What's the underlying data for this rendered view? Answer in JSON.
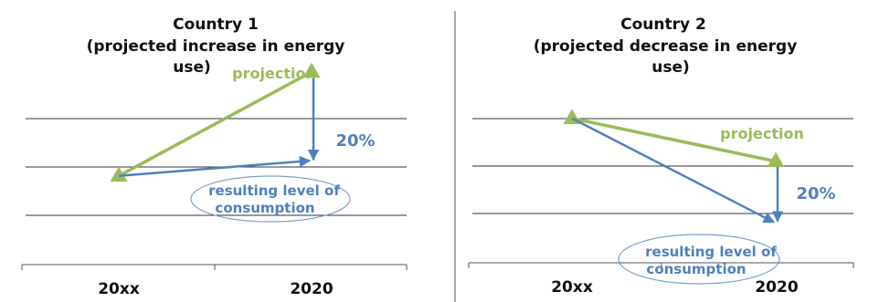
{
  "colors": {
    "projection": "#9bbb59",
    "consumption": "#4f81bd",
    "grid": "#333333",
    "ellipse": "#7f9fcf"
  },
  "chart_data": [
    {
      "type": "line",
      "title": [
        "Country 1",
        "(projected increase in energy",
        "use)"
      ],
      "categories": [
        "20xx",
        "2020"
      ],
      "series": [
        {
          "name": "projection",
          "values": [
            1.75,
            3.8
          ]
        },
        {
          "name": "resulting level of consumption",
          "values": [
            1.75,
            2.05
          ]
        }
      ],
      "annotation": "20%",
      "ylim": [
        0,
        4.5
      ],
      "grid": true
    },
    {
      "type": "line",
      "title": [
        "Country 2",
        "(projected decrease in energy",
        "use)"
      ],
      "categories": [
        "20xx",
        "2020"
      ],
      "series": [
        {
          "name": "projection",
          "values": [
            2.85,
            2.0
          ]
        },
        {
          "name": "resulting level of consumption",
          "values": [
            2.85,
            0.8
          ]
        }
      ],
      "annotation": "20%",
      "ylim": [
        0,
        4.5
      ],
      "grid": true
    }
  ]
}
